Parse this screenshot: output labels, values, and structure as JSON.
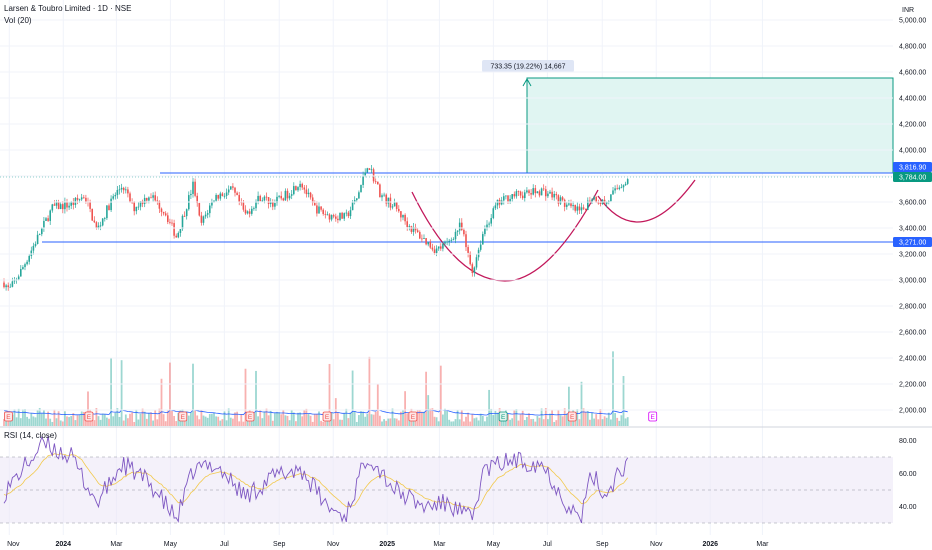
{
  "header": {
    "title": "Larsen & Toubro Limited · 1D · NSE",
    "volume_label": "Vol (20)",
    "currency": "INR"
  },
  "price_axis": {
    "ticks": [
      "5,000.00",
      "4,800.00",
      "4,600.00",
      "4,400.00",
      "4,200.00",
      "4,000.00",
      "3,800.00",
      "3,600.00",
      "3,400.00",
      "3,200.00",
      "3,000.00",
      "2,800.00",
      "2,600.00",
      "2,400.00",
      "2,200.00",
      "2,000.00"
    ],
    "tick_values": [
      5000,
      4800,
      4600,
      4400,
      4200,
      4000,
      3800,
      3600,
      3400,
      3200,
      3000,
      2800,
      2600,
      2400,
      2200,
      2000
    ]
  },
  "rsi_axis": {
    "label": "RSI (14, close)",
    "ticks": [
      "80.00",
      "60.00",
      "40.00"
    ],
    "tick_values": [
      80,
      60,
      40
    ]
  },
  "x_axis": {
    "labels": [
      {
        "text": "Nov",
        "bold": false
      },
      {
        "text": "2024",
        "bold": true
      },
      {
        "text": "Mar",
        "bold": false
      },
      {
        "text": "May",
        "bold": false
      },
      {
        "text": "Jul",
        "bold": false
      },
      {
        "text": "Sep",
        "bold": false
      },
      {
        "text": "Nov",
        "bold": false
      },
      {
        "text": "2025",
        "bold": true
      },
      {
        "text": "Mar",
        "bold": false
      },
      {
        "text": "May",
        "bold": false
      },
      {
        "text": "Jul",
        "bold": false
      },
      {
        "text": "Sep",
        "bold": false
      },
      {
        "text": "Nov",
        "bold": false
      },
      {
        "text": "2026",
        "bold": true
      },
      {
        "text": "Mar",
        "bold": false
      }
    ]
  },
  "annotations": {
    "target_label": "733.35 (19.22%) 14,667",
    "resistance_tag": "3,816.90",
    "last_price_tag": "3,784.00",
    "support_tag": "3,271.00",
    "earnings_marker": "E"
  },
  "colors": {
    "up": "#26a69a",
    "down": "#ef5350",
    "level_line": "#2962ff",
    "cup_curve": "#c2185b",
    "target_zone": "#e0f5f2",
    "target_border": "#089981",
    "rsi_line": "#7e57c2",
    "rsi_ma": "#f2c94c",
    "vol_ma": "#2962ff"
  },
  "chart_data": {
    "type": "candlestick",
    "symbol": "Larsen & Toubro Limited",
    "interval": "1D",
    "exchange": "NSE",
    "horizontal_levels": [
      3816.9,
      3271.0
    ],
    "last_price": 3784.0,
    "target_projection": {
      "from": 3816.9,
      "to": 4550.25,
      "change": 733.35,
      "change_pct": 19.22,
      "bars": 14667
    },
    "price_path": [
      [
        "2023-10-26",
        2980
      ],
      [
        "2023-11-01",
        2920
      ],
      [
        "2023-11-15",
        3080
      ],
      [
        "2023-12-01",
        3300
      ],
      [
        "2023-12-20",
        3560
      ],
      [
        "2024-01-10",
        3580
      ],
      [
        "2024-01-25",
        3650
      ],
      [
        "2024-02-08",
        3380
      ],
      [
        "2024-02-25",
        3620
      ],
      [
        "2024-03-08",
        3730
      ],
      [
        "2024-03-20",
        3550
      ],
      [
        "2024-04-08",
        3660
      ],
      [
        "2024-04-25",
        3520
      ],
      [
        "2024-05-08",
        3330
      ],
      [
        "2024-05-27",
        3740
      ],
      [
        "2024-06-04",
        3420
      ],
      [
        "2024-06-20",
        3640
      ],
      [
        "2024-07-10",
        3690
      ],
      [
        "2024-07-25",
        3500
      ],
      [
        "2024-08-10",
        3640
      ],
      [
        "2024-08-25",
        3590
      ],
      [
        "2024-09-10",
        3660
      ],
      [
        "2024-09-25",
        3760
      ],
      [
        "2024-10-10",
        3560
      ],
      [
        "2024-10-25",
        3500
      ],
      [
        "2024-11-15",
        3480
      ],
      [
        "2024-11-28",
        3630
      ],
      [
        "2024-12-10",
        3900
      ],
      [
        "2024-12-25",
        3650
      ],
      [
        "2025-01-10",
        3560
      ],
      [
        "2025-01-25",
        3420
      ],
      [
        "2025-02-10",
        3320
      ],
      [
        "2025-02-25",
        3230
      ],
      [
        "2025-03-10",
        3280
      ],
      [
        "2025-03-25",
        3420
      ],
      [
        "2025-04-07",
        3060
      ],
      [
        "2025-04-20",
        3380
      ],
      [
        "2025-05-05",
        3580
      ],
      [
        "2025-05-20",
        3650
      ],
      [
        "2025-06-05",
        3660
      ],
      [
        "2025-06-25",
        3690
      ],
      [
        "2025-07-10",
        3640
      ],
      [
        "2025-07-25",
        3560
      ],
      [
        "2025-08-08",
        3520
      ],
      [
        "2025-08-20",
        3640
      ],
      [
        "2025-09-05",
        3590
      ],
      [
        "2025-09-20",
        3720
      ],
      [
        "2025-10-01",
        3784
      ]
    ],
    "rsi_path": [
      [
        "2023-10-26",
        48
      ],
      [
        "2023-11-15",
        62
      ],
      [
        "2023-12-10",
        78
      ],
      [
        "2024-01-10",
        70
      ],
      [
        "2024-02-08",
        42
      ],
      [
        "2024-03-08",
        66
      ],
      [
        "2024-04-08",
        54
      ],
      [
        "2024-05-08",
        32
      ],
      [
        "2024-05-27",
        62
      ],
      [
        "2024-06-20",
        66
      ],
      [
        "2024-07-25",
        46
      ],
      [
        "2024-08-25",
        58
      ],
      [
        "2024-09-25",
        63
      ],
      [
        "2024-10-25",
        40
      ],
      [
        "2024-11-15",
        34
      ],
      [
        "2024-12-10",
        72
      ],
      [
        "2025-01-10",
        50
      ],
      [
        "2025-02-10",
        40
      ],
      [
        "2025-03-10",
        42
      ],
      [
        "2025-04-07",
        32
      ],
      [
        "2025-04-20",
        62
      ],
      [
        "2025-05-20",
        68
      ],
      [
        "2025-06-25",
        66
      ],
      [
        "2025-07-25",
        40
      ],
      [
        "2025-08-08",
        32
      ],
      [
        "2025-08-20",
        60
      ],
      [
        "2025-09-05",
        46
      ],
      [
        "2025-09-20",
        62
      ],
      [
        "2025-10-01",
        66
      ]
    ],
    "ylim": [
      2000,
      5100
    ],
    "rsi_ylim": [
      30,
      85
    ]
  }
}
